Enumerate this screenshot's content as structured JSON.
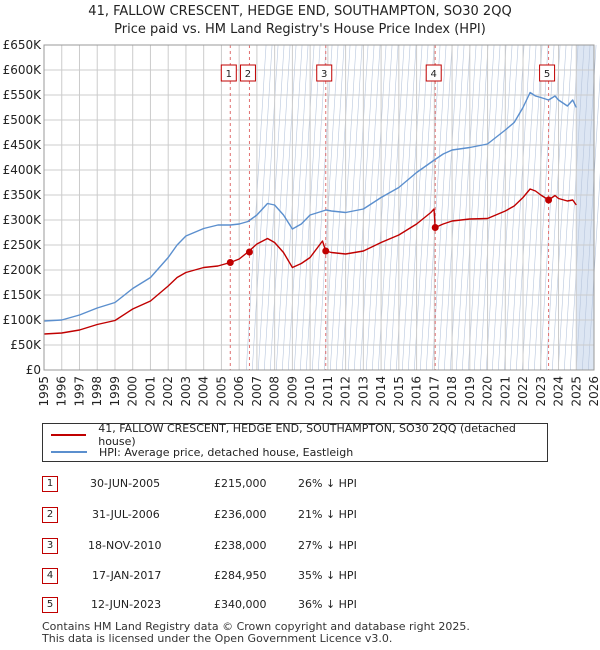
{
  "title_line1": "41, FALLOW CRESCENT, HEDGE END, SOUTHAMPTON, SO30 2QQ",
  "title_line2": "Price paid vs. HM Land Registry's House Price Index (HPI)",
  "colors": {
    "property": "#c00000",
    "hpi": "#5b8fce",
    "shade": "#dde6f3",
    "grid": "#cccccc",
    "marker_line": "#e07070"
  },
  "chart_data": {
    "type": "line",
    "title": "Price paid vs. HM Land Registry's House Price Index (HPI)",
    "xlabel": "",
    "ylabel": "",
    "xlim": [
      1995,
      2026
    ],
    "ylim": [
      0,
      650000
    ],
    "x_ticks": [
      "1995",
      "1996",
      "1997",
      "1998",
      "1999",
      "2000",
      "2001",
      "2002",
      "2003",
      "2004",
      "2005",
      "2006",
      "2007",
      "2008",
      "2009",
      "2010",
      "2011",
      "2012",
      "2013",
      "2014",
      "2015",
      "2016",
      "2017",
      "2018",
      "2019",
      "2020",
      "2021",
      "2022",
      "2023",
      "2024",
      "2025",
      "2026"
    ],
    "y_ticks": [
      "£0",
      "£50K",
      "£100K",
      "£150K",
      "£200K",
      "£250K",
      "£300K",
      "£350K",
      "£400K",
      "£450K",
      "£500K",
      "£550K",
      "£600K",
      "£650K"
    ],
    "forecast_shade_from": 2025.0,
    "series": [
      {
        "name": "41, FALLOW CRESCENT, HEDGE END, SOUTHAMPTON, SO30 2QQ (detached house)",
        "color": "#c00000",
        "points": [
          [
            1995.0,
            72000
          ],
          [
            1996.0,
            74000
          ],
          [
            1997.0,
            80000
          ],
          [
            1998.0,
            91000
          ],
          [
            1999.0,
            99000
          ],
          [
            2000.0,
            122000
          ],
          [
            2001.0,
            138000
          ],
          [
            2002.0,
            168000
          ],
          [
            2002.5,
            185000
          ],
          [
            2003.0,
            195000
          ],
          [
            2004.0,
            205000
          ],
          [
            2004.8,
            208000
          ],
          [
            2005.3,
            213000
          ],
          [
            2005.5,
            215000
          ],
          [
            2006.0,
            222000
          ],
          [
            2006.5,
            236000
          ],
          [
            2007.0,
            252000
          ],
          [
            2007.6,
            263000
          ],
          [
            2008.0,
            255000
          ],
          [
            2008.5,
            235000
          ],
          [
            2009.0,
            205000
          ],
          [
            2009.5,
            213000
          ],
          [
            2010.0,
            225000
          ],
          [
            2010.7,
            258000
          ],
          [
            2010.88,
            238000
          ],
          [
            2011.2,
            235000
          ],
          [
            2012.0,
            232000
          ],
          [
            2013.0,
            238000
          ],
          [
            2014.0,
            255000
          ],
          [
            2015.0,
            270000
          ],
          [
            2016.0,
            292000
          ],
          [
            2016.8,
            315000
          ],
          [
            2016.98,
            322000
          ],
          [
            2017.05,
            284950
          ],
          [
            2017.5,
            292000
          ],
          [
            2018.0,
            298000
          ],
          [
            2019.0,
            302000
          ],
          [
            2020.0,
            303000
          ],
          [
            2021.0,
            318000
          ],
          [
            2021.5,
            328000
          ],
          [
            2022.0,
            345000
          ],
          [
            2022.4,
            362000
          ],
          [
            2022.7,
            358000
          ],
          [
            2023.0,
            350000
          ],
          [
            2023.44,
            340000
          ],
          [
            2023.8,
            349000
          ],
          [
            2024.0,
            343000
          ],
          [
            2024.5,
            338000
          ],
          [
            2024.8,
            340000
          ],
          [
            2025.0,
            330000
          ]
        ]
      },
      {
        "name": "HPI: Average price, detached house, Eastleigh",
        "color": "#5b8fce",
        "points": [
          [
            1995.0,
            98000
          ],
          [
            1996.0,
            100000
          ],
          [
            1997.0,
            110000
          ],
          [
            1998.0,
            124000
          ],
          [
            1999.0,
            135000
          ],
          [
            2000.0,
            163000
          ],
          [
            2001.0,
            185000
          ],
          [
            2002.0,
            225000
          ],
          [
            2002.5,
            250000
          ],
          [
            2003.0,
            268000
          ],
          [
            2004.0,
            283000
          ],
          [
            2004.8,
            290000
          ],
          [
            2005.5,
            290000
          ],
          [
            2006.0,
            292000
          ],
          [
            2006.5,
            297000
          ],
          [
            2007.0,
            310000
          ],
          [
            2007.6,
            333000
          ],
          [
            2008.0,
            330000
          ],
          [
            2008.5,
            310000
          ],
          [
            2009.0,
            282000
          ],
          [
            2009.5,
            292000
          ],
          [
            2010.0,
            310000
          ],
          [
            2010.9,
            320000
          ],
          [
            2011.2,
            318000
          ],
          [
            2012.0,
            315000
          ],
          [
            2013.0,
            322000
          ],
          [
            2014.0,
            345000
          ],
          [
            2015.0,
            365000
          ],
          [
            2016.0,
            395000
          ],
          [
            2017.0,
            420000
          ],
          [
            2017.5,
            432000
          ],
          [
            2018.0,
            440000
          ],
          [
            2019.0,
            445000
          ],
          [
            2020.0,
            452000
          ],
          [
            2021.0,
            480000
          ],
          [
            2021.5,
            495000
          ],
          [
            2022.0,
            525000
          ],
          [
            2022.4,
            555000
          ],
          [
            2022.7,
            548000
          ],
          [
            2023.0,
            545000
          ],
          [
            2023.44,
            540000
          ],
          [
            2023.8,
            548000
          ],
          [
            2024.0,
            540000
          ],
          [
            2024.5,
            528000
          ],
          [
            2024.8,
            540000
          ],
          [
            2025.0,
            525000
          ]
        ]
      }
    ],
    "sales": [
      {
        "label": "1",
        "x": 2005.5,
        "price": 215000
      },
      {
        "label": "2",
        "x": 2006.58,
        "price": 236000
      },
      {
        "label": "3",
        "x": 2010.88,
        "price": 238000
      },
      {
        "label": "4",
        "x": 2017.05,
        "price": 284950
      },
      {
        "label": "5",
        "x": 2023.44,
        "price": 340000
      }
    ]
  },
  "legend": {
    "property": "41, FALLOW CRESCENT, HEDGE END, SOUTHAMPTON, SO30 2QQ (detached house)",
    "hpi": "HPI: Average price, detached house, Eastleigh"
  },
  "table": [
    {
      "num": "1",
      "date": "30-JUN-2005",
      "price": "£215,000",
      "hpi": "26% ↓ HPI"
    },
    {
      "num": "2",
      "date": "31-JUL-2006",
      "price": "£236,000",
      "hpi": "21% ↓ HPI"
    },
    {
      "num": "3",
      "date": "18-NOV-2010",
      "price": "£238,000",
      "hpi": "27% ↓ HPI"
    },
    {
      "num": "4",
      "date": "17-JAN-2017",
      "price": "£284,950",
      "hpi": "35% ↓ HPI"
    },
    {
      "num": "5",
      "date": "12-JUN-2023",
      "price": "£340,000",
      "hpi": "36% ↓ HPI"
    }
  ],
  "footer": {
    "line1": "Contains HM Land Registry data © Crown copyright and database right 2025.",
    "line2": "This data is licensed under the Open Government Licence v3.0."
  }
}
